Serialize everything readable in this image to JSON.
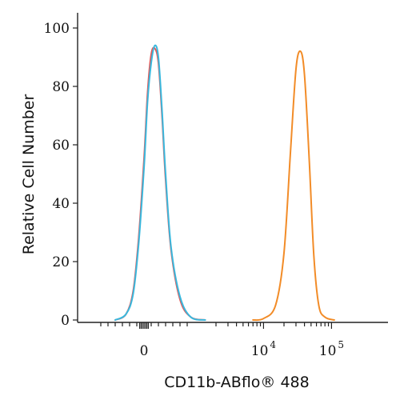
{
  "chart_data": {
    "type": "line",
    "xlabel": "CD11b-ABflo® 488",
    "ylabel": "Relative Cell Number",
    "x_scale": "biexponential",
    "ylim": [
      0,
      100
    ],
    "y_ticks": [
      0,
      20,
      40,
      60,
      80,
      100
    ],
    "x_tick_labels": [
      {
        "value": 0,
        "base": "0",
        "exp": ""
      },
      {
        "value": 10000,
        "base": "10",
        "exp": "4"
      },
      {
        "value": 100000,
        "base": "10",
        "exp": "5"
      }
    ],
    "grid": false,
    "series": [
      {
        "color": "#e05a5a",
        "x": [
          -800,
          -500,
          -300,
          -150,
          0,
          100,
          200,
          300,
          400,
          500,
          600,
          750,
          1000,
          1300,
          1700
        ],
        "y": [
          0,
          2,
          10,
          28,
          55,
          78,
          91,
          93,
          88,
          70,
          48,
          24,
          7,
          1,
          0
        ]
      },
      {
        "color": "#3ab8dd",
        "x": [
          -800,
          -500,
          -300,
          -150,
          0,
          100,
          200,
          300,
          400,
          500,
          600,
          750,
          1000,
          1300,
          1700
        ],
        "y": [
          0,
          2,
          9,
          26,
          52,
          75,
          88,
          94,
          90,
          72,
          50,
          25,
          8,
          1,
          0
        ]
      },
      {
        "color": "#f28c28",
        "x": [
          7000,
          10000,
          15000,
          20000,
          25000,
          30000,
          35000,
          40000,
          47000,
          55000,
          65000,
          80000,
          110000
        ],
        "y": [
          0,
          0.5,
          5,
          23,
          58,
          86,
          92,
          84,
          55,
          22,
          5,
          1,
          0
        ]
      }
    ]
  }
}
